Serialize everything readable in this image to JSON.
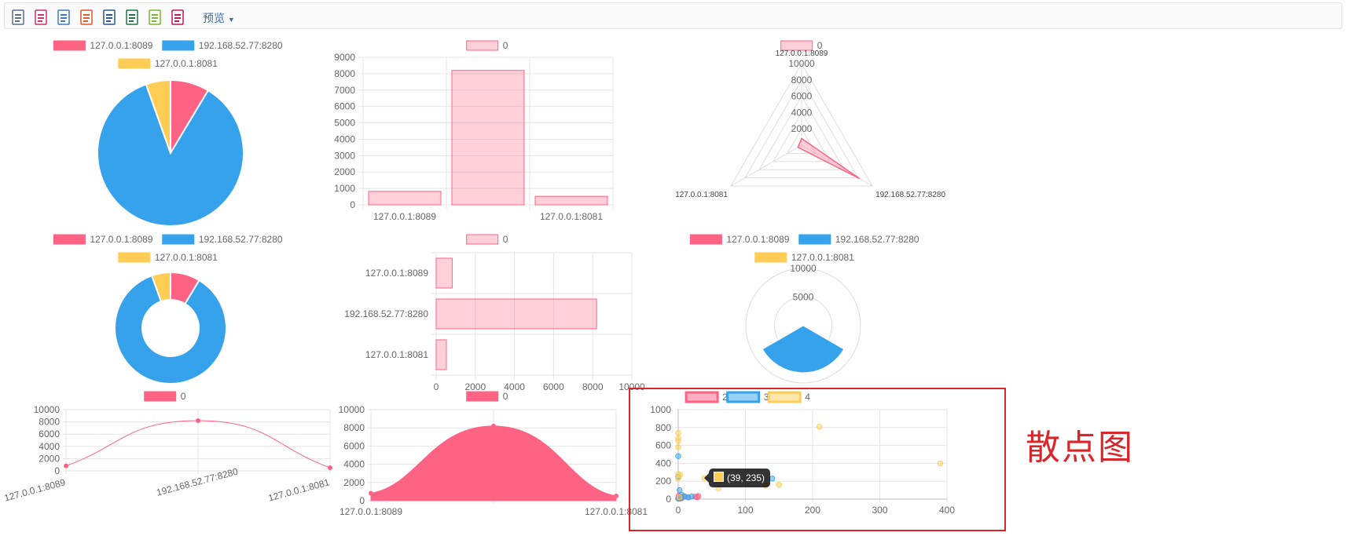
{
  "toolbar": {
    "icons": [
      "template-icon",
      "print-icon",
      "print-preview-icon",
      "pdf-icon",
      "word-icon",
      "excel-icon",
      "excel-alt-icon",
      "excel-export-icon"
    ],
    "icon_colors": [
      "#5b6f8a",
      "#cc3366",
      "#3a7fc1",
      "#e2572b",
      "#2b5797",
      "#217346",
      "#7cb82f",
      "#c2185b"
    ],
    "preview_label": "预览"
  },
  "colors": {
    "red": "#ff6384",
    "blue": "#36a2eb",
    "yellow": "#ffcd56",
    "pink_fill": "rgba(255,99,132,0.3)",
    "highlight": "#d9262a"
  },
  "highlight_label": "散点图",
  "chart_data": [
    {
      "id": "pie",
      "type": "pie",
      "legend": [
        "127.0.0.1:8089",
        "192.168.52.77:8280",
        "127.0.0.1:8081"
      ],
      "values": [
        820,
        8200,
        520
      ]
    },
    {
      "id": "bar",
      "type": "bar",
      "legend": [
        "0"
      ],
      "categories": [
        "127.0.0.1:8089",
        "192.168.52.77:8280",
        "127.0.0.1:8081"
      ],
      "values": [
        820,
        8200,
        520
      ],
      "x_tick_labels": [
        "127.0.0.1:8089",
        "",
        "127.0.0.1:8081"
      ],
      "ylim": [
        0,
        9000
      ],
      "yticks": [
        "9000",
        "8000",
        "7000",
        "6000",
        "5000",
        "4000",
        "3000",
        "2000",
        "1000",
        "0"
      ]
    },
    {
      "id": "radar",
      "type": "radar",
      "legend": [
        "0"
      ],
      "categories": [
        "127.0.0.1:8089",
        "192.168.52.77:8280",
        "127.0.0.1:8081"
      ],
      "values": [
        820,
        8200,
        520
      ],
      "ticks": [
        "10000",
        "8000",
        "6000",
        "4000",
        "2000"
      ]
    },
    {
      "id": "doughnut",
      "type": "doughnut",
      "legend": [
        "127.0.0.1:8089",
        "192.168.52.77:8280",
        "127.0.0.1:8081"
      ],
      "values": [
        820,
        8200,
        520
      ]
    },
    {
      "id": "hbar",
      "type": "bar",
      "orientation": "horizontal",
      "legend": [
        "0"
      ],
      "categories": [
        "127.0.0.1:8089",
        "192.168.52.77:8280",
        "127.0.0.1:8081"
      ],
      "values": [
        820,
        8200,
        520
      ],
      "xlim": [
        0,
        10000
      ],
      "xticks": [
        "0",
        "2000",
        "4000",
        "6000",
        "8000",
        "10000"
      ]
    },
    {
      "id": "polar",
      "type": "polarArea",
      "legend": [
        "127.0.0.1:8089",
        "192.168.52.77:8280",
        "127.0.0.1:8081"
      ],
      "values": [
        120,
        8200,
        60
      ],
      "ticks": [
        "10000",
        "5000"
      ]
    },
    {
      "id": "line",
      "type": "line",
      "legend": [
        "0"
      ],
      "categories": [
        "127.0.0.1:8089",
        "192.168.52.77:8280",
        "127.0.0.1:8081"
      ],
      "values": [
        820,
        8200,
        520
      ],
      "ylim": [
        0,
        10000
      ],
      "yticks": [
        "10000",
        "8000",
        "6000",
        "4000",
        "2000",
        "0"
      ]
    },
    {
      "id": "area",
      "type": "area",
      "legend": [
        "0"
      ],
      "categories": [
        "127.0.0.1:8089",
        "192.168.52.77:8280",
        "127.0.0.1:8081"
      ],
      "values": [
        820,
        8200,
        520
      ],
      "x_tick_labels": [
        "127.0.0.1:8089",
        "",
        "127.0.0.1:8081"
      ],
      "ylim": [
        0,
        10000
      ],
      "yticks": [
        "10000",
        "8000",
        "6000",
        "4000",
        "2000",
        "0"
      ]
    },
    {
      "id": "scatter",
      "type": "scatter",
      "xlim": [
        0,
        400
      ],
      "ylim": [
        0,
        1000
      ],
      "xticks": [
        "0",
        "100",
        "200",
        "300",
        "400"
      ],
      "yticks": [
        "1000",
        "800",
        "600",
        "400",
        "200",
        "0"
      ],
      "tooltip": "(39, 235)",
      "series": [
        {
          "name": "2",
          "color": "#ff6384",
          "points": [
            [
              0,
              10
            ],
            [
              2,
              25
            ],
            [
              3,
              5
            ],
            [
              5,
              15
            ],
            [
              8,
              30
            ],
            [
              15,
              20
            ],
            [
              25,
              28
            ],
            [
              28,
              22
            ],
            [
              30,
              35
            ],
            [
              1,
              40
            ]
          ]
        },
        {
          "name": "3",
          "color": "#36a2eb",
          "points": [
            [
              0,
              480
            ],
            [
              0,
              250
            ],
            [
              2,
              100
            ],
            [
              5,
              50
            ],
            [
              10,
              30
            ],
            [
              15,
              20
            ],
            [
              20,
              30
            ],
            [
              140,
              230
            ],
            [
              5,
              10
            ],
            [
              0,
              5
            ]
          ]
        },
        {
          "name": "4",
          "color": "#ffcd56",
          "points": [
            [
              0,
              740
            ],
            [
              0,
              680
            ],
            [
              0,
              650
            ],
            [
              0,
              580
            ],
            [
              0,
              280
            ],
            [
              3,
              270
            ],
            [
              39,
              235
            ],
            [
              60,
              120
            ],
            [
              130,
              150
            ],
            [
              150,
              160
            ],
            [
              210,
              810
            ],
            [
              390,
              400
            ],
            [
              2,
              20
            ],
            [
              0,
              230
            ]
          ]
        }
      ]
    }
  ]
}
